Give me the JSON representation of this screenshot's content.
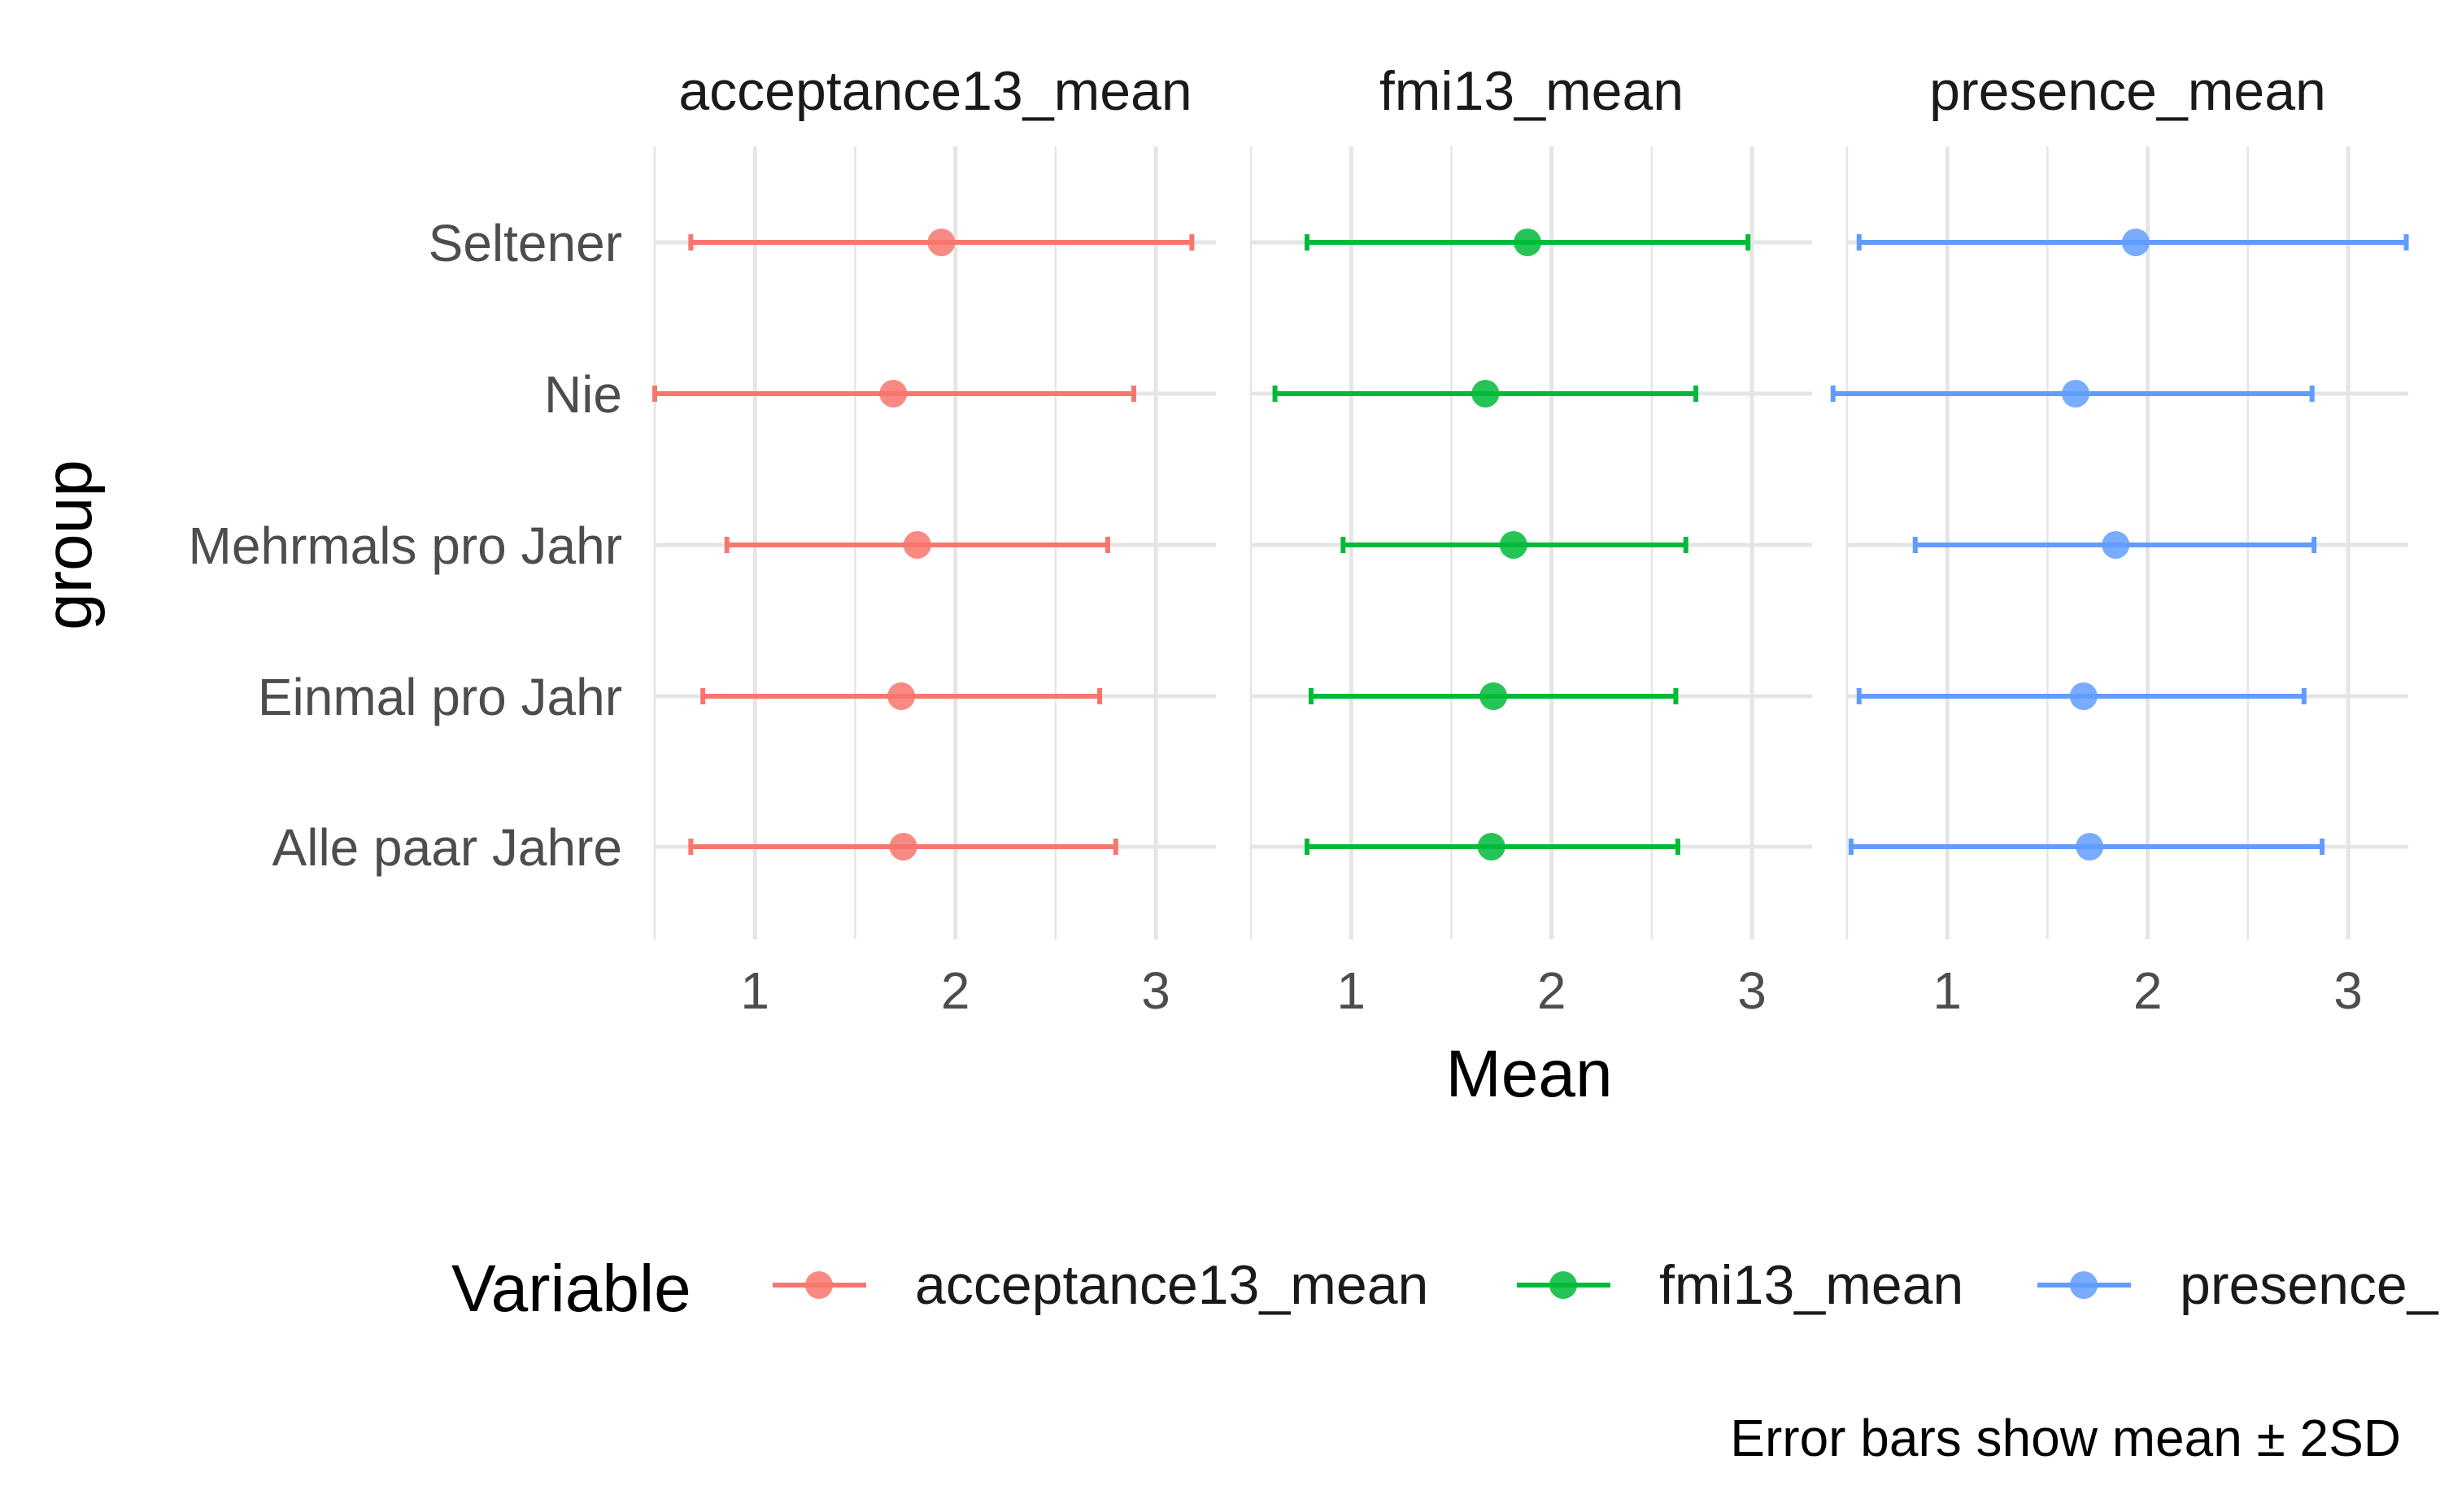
{
  "chart_data": {
    "type": "errorbar",
    "ylabel": "group",
    "xlabel": "Mean",
    "categories": [
      "Seltener",
      "Nie",
      "Mehrmals pro Jahr",
      "Einmal pro Jahr",
      "Alle paar Jahre"
    ],
    "xlim": [
      0.5,
      3.3
    ],
    "x_ticks": [
      1,
      2,
      3
    ],
    "grid": true,
    "legend_position": "bottom",
    "legend_title": "Variable",
    "caption": "Error bars show mean ± 2SD",
    "panels": [
      {
        "name": "acceptance13_mean",
        "color": "#F8766D",
        "points": [
          {
            "group": "Seltener",
            "mean": 1.93,
            "lower": 0.68,
            "upper": 3.18
          },
          {
            "group": "Nie",
            "mean": 1.69,
            "lower": 0.5,
            "upper": 2.89
          },
          {
            "group": "Mehrmals pro Jahr",
            "mean": 1.81,
            "lower": 0.86,
            "upper": 2.76
          },
          {
            "group": "Einmal pro Jahr",
            "mean": 1.73,
            "lower": 0.74,
            "upper": 2.72
          },
          {
            "group": "Alle paar Jahre",
            "mean": 1.74,
            "lower": 0.68,
            "upper": 2.8
          }
        ]
      },
      {
        "name": "fmi13_mean",
        "color": "#00BA38",
        "points": [
          {
            "group": "Seltener",
            "mean": 1.88,
            "lower": 0.78,
            "upper": 2.98
          },
          {
            "group": "Nie",
            "mean": 1.67,
            "lower": 0.62,
            "upper": 2.72
          },
          {
            "group": "Mehrmals pro Jahr",
            "mean": 1.81,
            "lower": 0.96,
            "upper": 2.67
          },
          {
            "group": "Einmal pro Jahr",
            "mean": 1.71,
            "lower": 0.8,
            "upper": 2.62
          },
          {
            "group": "Alle paar Jahre",
            "mean": 1.7,
            "lower": 0.78,
            "upper": 2.63
          }
        ]
      },
      {
        "name": "presence_mean",
        "color": "#619CFF",
        "points": [
          {
            "group": "Seltener",
            "mean": 1.94,
            "lower": 0.56,
            "upper": 3.29
          },
          {
            "group": "Nie",
            "mean": 1.64,
            "lower": 0.43,
            "upper": 2.82
          },
          {
            "group": "Mehrmals pro Jahr",
            "mean": 1.84,
            "lower": 0.84,
            "upper": 2.83
          },
          {
            "group": "Einmal pro Jahr",
            "mean": 1.68,
            "lower": 0.56,
            "upper": 2.78
          },
          {
            "group": "Alle paar Jahre",
            "mean": 1.71,
            "lower": 0.52,
            "upper": 2.87
          }
        ]
      }
    ]
  }
}
